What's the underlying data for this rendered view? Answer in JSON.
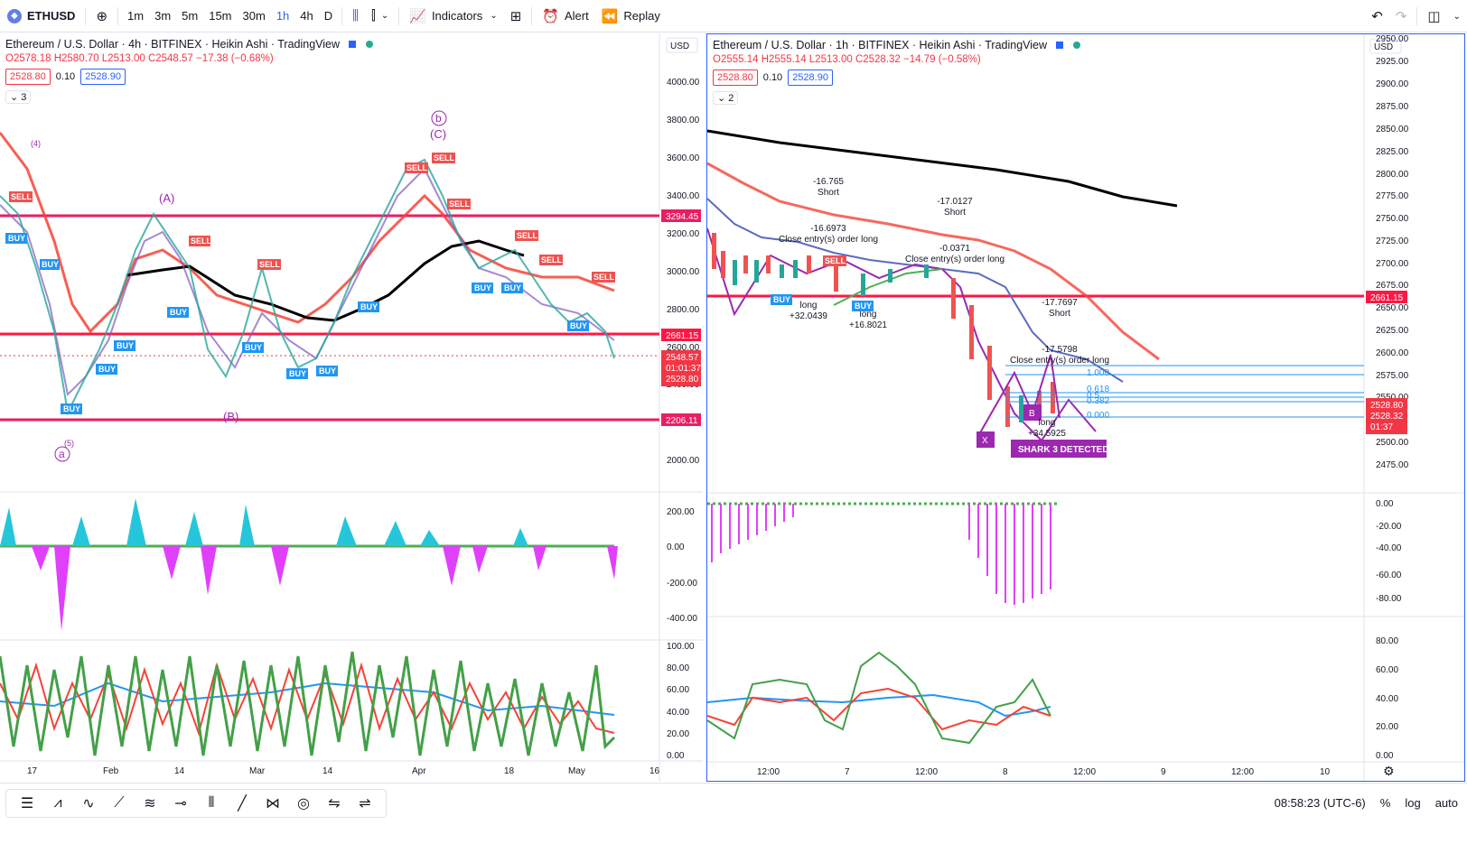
{
  "toolbar": {
    "symbol": "ETHUSD",
    "timeframes": [
      "1m",
      "3m",
      "5m",
      "15m",
      "30m",
      "1h",
      "4h",
      "D"
    ],
    "active_timeframe": "1h",
    "indicators_label": "Indicators",
    "alert_label": "Alert",
    "replay_label": "Replay"
  },
  "left_chart": {
    "title": "Ethereum / U.S. Dollar · 4h · BITFINEX · Heikin Ashi · TradingView",
    "ohlc": "O2578.18 H2580.70 L2513.00 C2548.57 −17.38 (−0.68%)",
    "sell_price": "2528.80",
    "spread": "0.10",
    "buy_price": "2528.90",
    "collapse_count": "3",
    "currency": "USD",
    "price_ticks": [
      "4000.00",
      "3800.00",
      "3600.00",
      "3400.00",
      "3200.00",
      "3000.00",
      "2800.00",
      "2600.00",
      "2400.00",
      "2000.00"
    ],
    "levels": [
      "3294.45",
      "2661.15",
      "2206.11"
    ],
    "last_price": "2548.57",
    "countdown": "01:01:37",
    "bid_label": "2528.80",
    "osc1_ticks": [
      "200.00",
      "0.00",
      "-200.00",
      "-400.00"
    ],
    "osc2_ticks": [
      "100.00",
      "80.00",
      "60.00",
      "40.00",
      "20.00",
      "0.00"
    ],
    "time_ticks": [
      "17",
      "Feb",
      "14",
      "Mar",
      "14",
      "Apr",
      "18",
      "May",
      "16"
    ],
    "wave_labels": [
      "(4)",
      "(A)",
      "(B)",
      "(5)",
      "a",
      "b",
      "(C)"
    ]
  },
  "right_chart": {
    "title": "Ethereum / U.S. Dollar · 1h · BITFINEX · Heikin Ashi · TradingView",
    "ohlc": "O2555.14 H2555.14 L2513.00 C2528.32 −14.79 (−0.58%)",
    "sell_price": "2528.80",
    "spread": "0.10",
    "buy_price": "2528.90",
    "collapse_count": "2",
    "currency": "USD",
    "price_ticks": [
      "2950.00",
      "2925.00",
      "2900.00",
      "2875.00",
      "2850.00",
      "2825.00",
      "2800.00",
      "2775.00",
      "2750.00",
      "2725.00",
      "2700.00",
      "2675.00",
      "2650.00",
      "2625.00",
      "2600.00",
      "2575.00",
      "2550.00",
      "2500.00",
      "2475.00"
    ],
    "level": "2661.15",
    "bid_label": "2528.80",
    "last_price": "2528.32",
    "countdown": "01:37",
    "osc1_ticks": [
      "0.00",
      "-20.00",
      "-40.00",
      "-60.00",
      "-80.00"
    ],
    "osc2_ticks": [
      "80.00",
      "60.00",
      "40.00",
      "20.00",
      "0.00"
    ],
    "time_ticks": [
      "12:00",
      "7",
      "12:00",
      "8",
      "12:00",
      "9",
      "12:00",
      "10"
    ],
    "annotations": {
      "short1_val": "-16.765",
      "short1_lbl": "Short",
      "close1_val": "-16.6973",
      "close1_lbl": "Close entry(s) order long",
      "long1_lbl": "long",
      "long1_val": "+32.0439",
      "short2_val": "-17.0127",
      "short2_lbl": "Short",
      "close2_val": "-0.0371",
      "close2_lbl": "Close entry(s) order long",
      "long2_lbl": "long",
      "long2_val": "+16.8021",
      "short3_val": "-17.7697",
      "short3_lbl": "Short",
      "close3_val": "-17.5798",
      "close3_lbl": "Close entry(s) order long",
      "long3_lbl": "long",
      "long3_val": "+34.5925",
      "fib_levels": [
        "1.000",
        "0.618",
        "0.5",
        "0.382",
        "0.000"
      ],
      "pattern_x": "X",
      "pattern_b": "B",
      "shark_label": "SHARK 3 DETECTED"
    }
  },
  "bottom": {
    "time": "08:58:23 (UTC-6)",
    "percent": "%",
    "log": "log",
    "auto": "auto"
  }
}
